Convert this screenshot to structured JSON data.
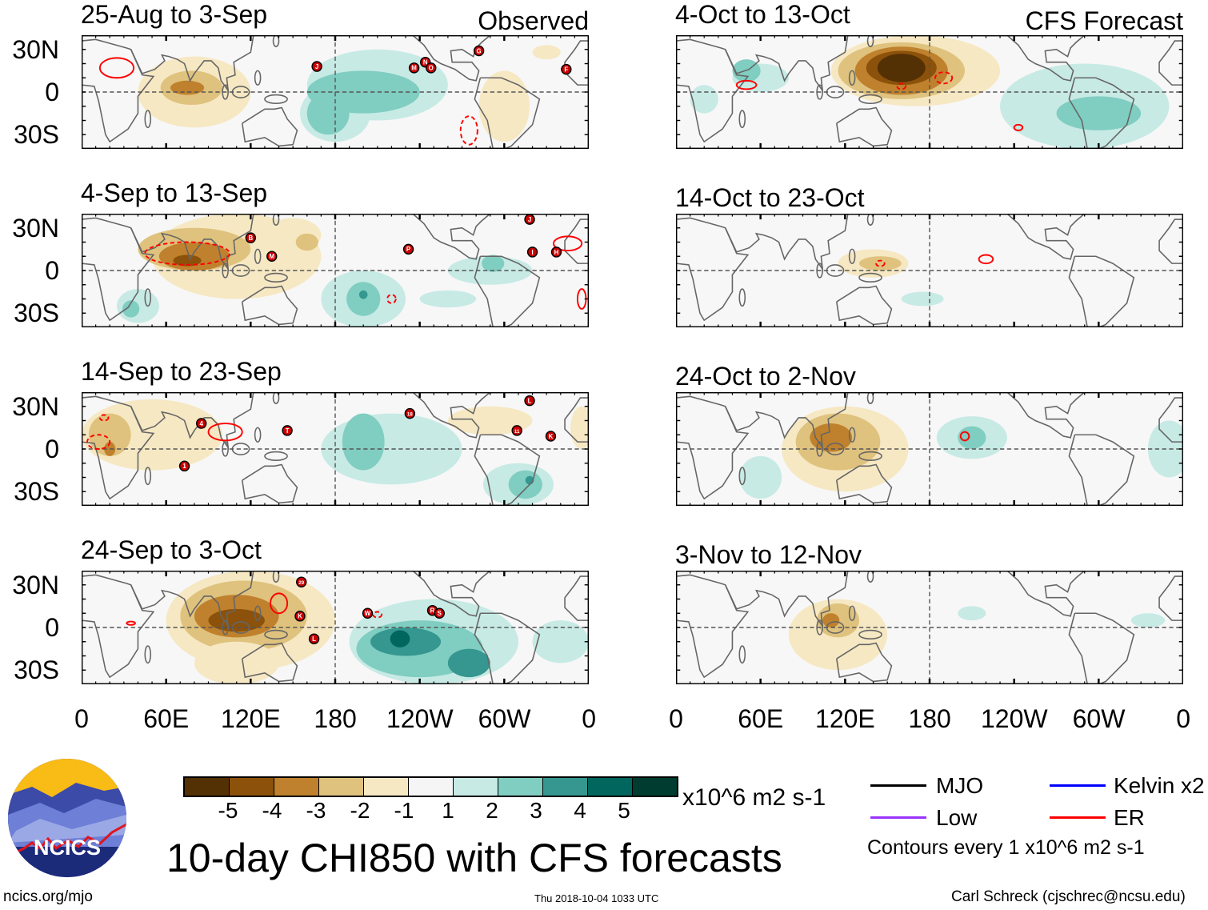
{
  "figure_title": "10-day CHI850 with CFS forecasts",
  "observed_label": "Observed",
  "forecast_label": "CFS Forecast",
  "units": "x10^6 m2 s-1",
  "colorbar": {
    "ticks": [
      "-5",
      "-4",
      "-3",
      "-2",
      "-1",
      "1",
      "2",
      "3",
      "4",
      "5"
    ],
    "colors": [
      "#543005",
      "#8c510a",
      "#bf812d",
      "#dfc27d",
      "#f6e8c3",
      "#f5f5f5",
      "#c7eae5",
      "#80cdc1",
      "#35978f",
      "#01665e",
      "#003c30"
    ]
  },
  "legend": {
    "items": [
      {
        "label": "MJO",
        "color": "#000000"
      },
      {
        "label": "Kelvin x2",
        "color": "#0000ff"
      },
      {
        "label": "Low",
        "color": "#9933ff"
      },
      {
        "label": "ER",
        "color": "#ff0000"
      }
    ],
    "contours_note": "Contours every 1 x10^6 m2 s-1"
  },
  "logo_text": "NCICS",
  "footer": {
    "left": "ncics.org/mjo",
    "center": "Thu 2018-10-04 1033 UTC",
    "right": "Carl Schreck (cjschrec@ncsu.edu)"
  },
  "lat_labels": [
    "30N",
    "0",
    "30S"
  ],
  "lon_labels": [
    "0",
    "60E",
    "120E",
    "180",
    "120W",
    "60W",
    "0"
  ],
  "chart_data": {
    "type": "map",
    "lon_range": [
      0,
      360
    ],
    "lat_range": [
      -40,
      40
    ],
    "panels": [
      {
        "title": "25-Aug to 3-Sep",
        "type": "observed",
        "anomalies": [
          [
            80,
            0,
            40,
            25,
            -1
          ],
          [
            78,
            3,
            22,
            12,
            -2
          ],
          [
            75,
            3,
            12,
            5,
            -3
          ],
          [
            210,
            5,
            50,
            25,
            1
          ],
          [
            180,
            -15,
            25,
            20,
            1
          ],
          [
            200,
            0,
            40,
            15,
            2
          ],
          [
            175,
            -15,
            15,
            15,
            2
          ],
          [
            300,
            -10,
            18,
            25,
            -1
          ],
          [
            330,
            28,
            10,
            5,
            -1
          ]
        ],
        "er_contours": [
          [
            25,
            17,
            12,
            7,
            "solid"
          ],
          [
            275,
            -27,
            6,
            10,
            "dashed"
          ]
        ],
        "storms": [
          [
            "J",
            167,
            18
          ],
          [
            "M",
            236,
            17
          ],
          [
            "N",
            244,
            21
          ],
          [
            "O",
            248,
            17
          ],
          [
            "G",
            282,
            29
          ],
          [
            "F",
            344,
            16
          ]
        ]
      },
      {
        "title": "4-Sep to 13-Sep",
        "type": "observed",
        "anomalies": [
          [
            110,
            10,
            60,
            30,
            -1
          ],
          [
            80,
            15,
            40,
            15,
            -2
          ],
          [
            80,
            10,
            25,
            10,
            -3
          ],
          [
            75,
            7,
            10,
            4,
            -4
          ],
          [
            150,
            25,
            20,
            12,
            -1
          ],
          [
            160,
            20,
            8,
            6,
            -2
          ],
          [
            200,
            -20,
            30,
            20,
            1
          ],
          [
            200,
            -20,
            12,
            12,
            2
          ],
          [
            200,
            -17,
            3,
            3,
            3
          ],
          [
            290,
            0,
            30,
            10,
            1
          ],
          [
            292,
            5,
            8,
            6,
            2
          ],
          [
            40,
            -25,
            15,
            12,
            1
          ],
          [
            35,
            -27,
            6,
            6,
            2
          ],
          [
            260,
            -20,
            20,
            6,
            1
          ]
        ],
        "er_contours": [
          [
            75,
            12,
            30,
            8,
            "dashed"
          ],
          [
            345,
            19,
            10,
            5,
            "solid"
          ],
          [
            220,
            -20,
            3,
            3,
            "dashed"
          ],
          [
            355,
            -20,
            3,
            7,
            "solid"
          ]
        ],
        "storms": [
          [
            "B",
            120,
            23
          ],
          [
            "M",
            135,
            10
          ],
          [
            "P",
            232,
            15
          ],
          [
            "J",
            318,
            36
          ],
          [
            "I",
            320,
            13
          ],
          [
            "H",
            337,
            13
          ]
        ]
      },
      {
        "title": "14-Sep to 23-Sep",
        "type": "observed",
        "anomalies": [
          [
            50,
            10,
            50,
            25,
            -1
          ],
          [
            20,
            10,
            15,
            15,
            -2
          ],
          [
            20,
            0,
            4,
            5,
            -3
          ],
          [
            290,
            20,
            30,
            10,
            -1
          ],
          [
            355,
            15,
            8,
            15,
            -1
          ],
          [
            220,
            0,
            50,
            25,
            1
          ],
          [
            200,
            5,
            15,
            20,
            2
          ],
          [
            310,
            -25,
            25,
            15,
            1
          ],
          [
            315,
            -25,
            12,
            10,
            2
          ],
          [
            318,
            -22,
            3,
            3,
            3
          ]
        ],
        "er_contours": [
          [
            12,
            5,
            8,
            5,
            "dashed"
          ],
          [
            16,
            22,
            3,
            2,
            "dashed"
          ],
          [
            102,
            12,
            12,
            6,
            "solid"
          ]
        ],
        "storms": [
          [
            "4",
            85,
            18
          ],
          [
            "1",
            73,
            -12
          ],
          [
            "T",
            146,
            13
          ],
          [
            "18",
            233,
            25
          ],
          [
            "L",
            318,
            34
          ],
          [
            "11",
            309,
            13
          ],
          [
            "K",
            333,
            9
          ]
        ]
      },
      {
        "title": "24-Sep to 3-Oct",
        "type": "observed",
        "anomalies": [
          [
            120,
            5,
            60,
            35,
            -1
          ],
          [
            115,
            8,
            45,
            25,
            -2
          ],
          [
            110,
            8,
            30,
            15,
            -3
          ],
          [
            110,
            5,
            20,
            8,
            -4
          ],
          [
            110,
            -25,
            30,
            15,
            -1
          ],
          [
            250,
            -10,
            60,
            30,
            1
          ],
          [
            240,
            -15,
            45,
            20,
            2
          ],
          [
            230,
            -10,
            25,
            10,
            3
          ],
          [
            226,
            -8,
            7,
            6,
            4
          ],
          [
            275,
            -25,
            15,
            10,
            3
          ],
          [
            340,
            -10,
            20,
            15,
            1
          ]
        ],
        "er_contours": [
          [
            140,
            17,
            6,
            7,
            "solid"
          ],
          [
            210,
            9,
            3,
            2,
            "dashed"
          ],
          [
            35,
            3,
            3,
            1.2,
            "solid"
          ]
        ],
        "storms": [
          [
            "29",
            156,
            32
          ],
          [
            "K",
            155,
            8
          ],
          [
            "L",
            165,
            -8
          ],
          [
            "W",
            203,
            10
          ],
          [
            "R",
            249,
            12
          ],
          [
            "S",
            254,
            10
          ]
        ]
      },
      {
        "title": "4-Oct to 13-Oct",
        "type": "forecast",
        "anomalies": [
          [
            170,
            15,
            60,
            25,
            -1
          ],
          [
            160,
            15,
            45,
            20,
            -2
          ],
          [
            160,
            15,
            33,
            17,
            -3
          ],
          [
            160,
            17,
            25,
            12,
            -4
          ],
          [
            160,
            17,
            17,
            10,
            -5
          ],
          [
            290,
            -10,
            60,
            30,
            1
          ],
          [
            300,
            -15,
            30,
            12,
            2
          ],
          [
            60,
            10,
            20,
            10,
            1
          ],
          [
            50,
            15,
            10,
            8,
            2
          ],
          [
            20,
            -5,
            10,
            10,
            1
          ]
        ],
        "er_contours": [
          [
            50,
            5,
            7,
            3,
            "solid"
          ],
          [
            160,
            4,
            3,
            2,
            "dashed"
          ],
          [
            190,
            10,
            6,
            4,
            "dashed"
          ],
          [
            243,
            -25,
            3,
            2,
            "solid"
          ]
        ],
        "storms": []
      },
      {
        "title": "14-Oct to 23-Oct",
        "type": "forecast",
        "anomalies": [
          [
            140,
            5,
            25,
            10,
            -1
          ],
          [
            145,
            5,
            15,
            5,
            -2
          ],
          [
            175,
            -20,
            15,
            5,
            1
          ]
        ],
        "er_contours": [
          [
            220,
            8,
            5,
            3,
            "solid"
          ],
          [
            145,
            5,
            3,
            2,
            "dashed"
          ]
        ],
        "storms": []
      },
      {
        "title": "24-Oct to 2-Nov",
        "type": "forecast",
        "anomalies": [
          [
            120,
            0,
            45,
            30,
            -1
          ],
          [
            115,
            5,
            30,
            20,
            -2
          ],
          [
            110,
            8,
            15,
            10,
            -3
          ],
          [
            210,
            8,
            25,
            15,
            1
          ],
          [
            210,
            8,
            10,
            8,
            2
          ],
          [
            60,
            -20,
            15,
            15,
            1
          ],
          [
            350,
            0,
            15,
            20,
            1
          ]
        ],
        "er_contours": [
          [
            205,
            9,
            3,
            3,
            "solid"
          ]
        ],
        "storms": []
      },
      {
        "title": "3-Nov to 12-Nov",
        "type": "forecast",
        "anomalies": [
          [
            115,
            -5,
            35,
            25,
            -1
          ],
          [
            115,
            5,
            15,
            12,
            -2
          ],
          [
            110,
            5,
            6,
            5,
            -3
          ],
          [
            210,
            10,
            10,
            5,
            1
          ],
          [
            335,
            5,
            12,
            5,
            1
          ]
        ],
        "er_contours": [],
        "storms": []
      }
    ]
  }
}
